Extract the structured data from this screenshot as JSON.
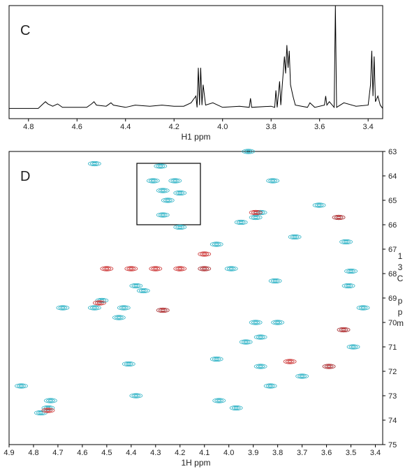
{
  "chart_data": [
    {
      "type": "line",
      "annotation": "C",
      "xlabel": "H1 ppm",
      "xlim": [
        4.88,
        3.34
      ],
      "ylim": [
        0,
        100
      ],
      "xticks": [
        4.8,
        4.6,
        4.4,
        4.2,
        {
          "value": 4,
          "label": "4.0"
        },
        3.8,
        3.6,
        3.4
      ],
      "color": "#000000",
      "x": [
        4.88,
        4.76,
        4.74,
        4.73,
        4.72,
        4.7,
        4.68,
        4.66,
        4.56,
        4.54,
        4.53,
        4.52,
        4.48,
        4.46,
        4.45,
        4.4,
        4.36,
        4.3,
        4.25,
        4.2,
        4.16,
        4.13,
        4.11,
        4.105,
        4.1,
        4.095,
        4.09,
        4.085,
        4.08,
        4.07,
        4.04,
        4.0,
        3.93,
        3.89,
        3.885,
        3.88,
        3.8,
        3.785,
        3.78,
        3.775,
        3.765,
        3.76,
        3.745,
        3.74,
        3.735,
        3.73,
        3.725,
        3.72,
        3.71,
        3.7,
        3.65,
        3.64,
        3.62,
        3.58,
        3.575,
        3.57,
        3.56,
        3.54,
        3.535,
        3.53,
        3.5,
        3.45,
        3.4,
        3.39,
        3.385,
        3.38,
        3.375,
        3.37,
        3.36,
        3.35,
        3.34
      ],
      "values": [
        9,
        9,
        13,
        15,
        13,
        11,
        13,
        10,
        10,
        13,
        15,
        12,
        11,
        14,
        12,
        10,
        12,
        11,
        12,
        11,
        11,
        14,
        20,
        10,
        45,
        12,
        45,
        12,
        30,
        12,
        14,
        10,
        11,
        10,
        18,
        10,
        11,
        10,
        25,
        10,
        33,
        12,
        55,
        40,
        65,
        45,
        60,
        30,
        20,
        12,
        10,
        14,
        10,
        12,
        20,
        12,
        15,
        10,
        100,
        10,
        14,
        11,
        12,
        30,
        60,
        20,
        55,
        15,
        20,
        12,
        9
      ]
    },
    {
      "type": "scatter",
      "annotation": "D",
      "xlabel": "1H ppm",
      "ylabel": "13C ppm",
      "xlim": [
        4.9,
        3.37
      ],
      "ylim": [
        63,
        75
      ],
      "xticks": [
        4.9,
        4.8,
        4.7,
        4.6,
        4.5,
        4.4,
        4.3,
        4.2,
        4.1,
        {
          "value": 4,
          "label": "4.0"
        },
        3.9,
        3.8,
        3.7,
        3.6,
        3.5,
        3.4
      ],
      "yticks": [
        63,
        64,
        65,
        66,
        67,
        68,
        69,
        70,
        71,
        72,
        73,
        74,
        75
      ],
      "series": [
        {
          "color": "#2fb3c6",
          "x": [
            4.28,
            4.31,
            4.22,
            4.27,
            4.2,
            4.25,
            4.27,
            3.82,
            3.63,
            3.87,
            3.89,
            3.95,
            3.55,
            3.52,
            4.1,
            3.99,
            4.52,
            4.55,
            4.43,
            4.45,
            4.27,
            4.38,
            4.35,
            4.68,
            3.89,
            3.53,
            3.8,
            3.87,
            3.93,
            4.05,
            3.59,
            3.87,
            4.74,
            4.73,
            4.77,
            4.38,
            4.41,
            3.81,
            3.5,
            3.51,
            3.45,
            3.49,
            3.83,
            4.85,
            3.97,
            4.04,
            3.7,
            3.92,
            4.55,
            3.73,
            4.05,
            4.2
          ],
          "values": [
            63.6,
            64.2,
            64.2,
            64.6,
            64.7,
            65.0,
            65.6,
            64.2,
            65.2,
            65.5,
            65.7,
            65.9,
            65.7,
            66.7,
            67.8,
            67.8,
            69.1,
            69.4,
            69.4,
            69.8,
            69.5,
            68.5,
            68.7,
            69.4,
            70.0,
            70.3,
            70.0,
            70.6,
            70.8,
            71.5,
            71.8,
            71.8,
            73.5,
            73.2,
            73.7,
            73.0,
            71.7,
            68.3,
            67.9,
            68.5,
            69.4,
            71.0,
            72.6,
            72.6,
            73.5,
            73.2,
            72.2,
            63.0,
            63.5,
            66.5,
            66.8,
            66.1
          ]
        },
        {
          "color": "#cc3333",
          "x": [
            4.27,
            4.1,
            3.89,
            3.55,
            3.53,
            3.59,
            4.74,
            4.53,
            4.1,
            4.5,
            4.4,
            4.3,
            4.2,
            3.75
          ],
          "values": [
            69.5,
            67.8,
            65.5,
            65.7,
            70.3,
            71.8,
            73.6,
            69.2,
            67.2,
            67.8,
            67.8,
            67.8,
            67.8,
            71.6
          ]
        }
      ]
    }
  ]
}
